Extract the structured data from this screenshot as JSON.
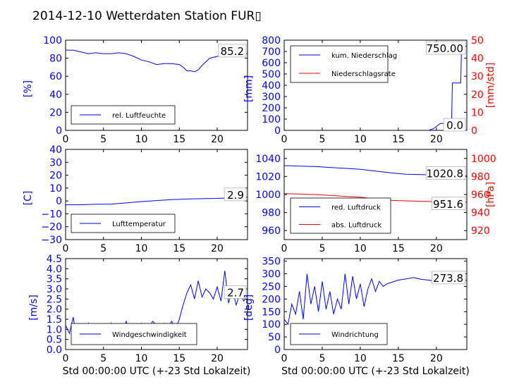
{
  "title": "2014-12-10 Wetterdaten Station FUR▯",
  "colors": {
    "primary": "#0000ff",
    "secondary": "#ff0000",
    "dim": "#7a7aff",
    "axis": "#000000"
  },
  "chart_data": [
    {
      "id": "humidity",
      "type": "line",
      "xlim": [
        0,
        24
      ],
      "ylim": [
        0,
        100
      ],
      "xticks": [
        0,
        5,
        10,
        15,
        20
      ],
      "yticks": [
        0,
        20,
        40,
        60,
        80,
        100
      ],
      "ylabel": "[%]",
      "value_box": "85.2",
      "legend": [
        {
          "label": "rel. Luftfeuchte",
          "color": "#0000ff"
        }
      ],
      "series": [
        {
          "name": "rel. Luftfeuchte",
          "axis": "left",
          "color": "#0000ff",
          "x": [
            0,
            1,
            2,
            3,
            4,
            5,
            6,
            7,
            8,
            9,
            10,
            11,
            12,
            13,
            14,
            15,
            15.5,
            16,
            16.5,
            17,
            17.5,
            18,
            18.5,
            19,
            20,
            21,
            22,
            23,
            24
          ],
          "y": [
            89,
            89,
            87,
            85,
            86,
            85,
            85,
            86,
            85,
            82,
            78,
            76,
            73,
            74,
            74,
            73,
            70,
            66,
            66,
            65,
            67,
            72,
            76,
            80,
            82,
            84,
            83,
            85,
            85.2
          ]
        }
      ]
    },
    {
      "id": "precipitation",
      "type": "line",
      "xlim": [
        0,
        24
      ],
      "ylim": [
        0,
        800
      ],
      "y2lim": [
        0,
        50
      ],
      "xticks": [
        0,
        5,
        10,
        15,
        20
      ],
      "yticks": [
        0,
        100,
        200,
        300,
        400,
        500,
        600,
        700,
        800
      ],
      "y2ticks": [
        0,
        10,
        20,
        30,
        40,
        50
      ],
      "ylabel": "[mm]",
      "y2label": "[mm/std]",
      "value_box": "750.00",
      "value_box2": "0.0",
      "legend": [
        {
          "label": "kum. Niederschlag",
          "color": "#0000ff"
        },
        {
          "label": "Niederschlagsrate",
          "color": "#ff0000"
        }
      ],
      "series": [
        {
          "name": "kum. Niederschlag",
          "axis": "left",
          "color": "#0000ff",
          "x": [
            0,
            19,
            19.6,
            20.5,
            21.8,
            22,
            22.1,
            23.2,
            23.3,
            24
          ],
          "y": [
            0,
            0,
            15,
            60,
            65,
            65,
            420,
            420,
            720,
            750
          ]
        },
        {
          "name": "Niederschlagsrate",
          "axis": "right",
          "color": "#ff0000",
          "x": [
            0,
            24
          ],
          "y": [
            0,
            0
          ]
        }
      ]
    },
    {
      "id": "temperature",
      "type": "line",
      "xlim": [
        0,
        24
      ],
      "ylim": [
        -30,
        40
      ],
      "xticks": [
        0,
        5,
        10,
        15,
        20
      ],
      "yticks": [
        -30,
        -20,
        -10,
        0,
        10,
        20,
        30,
        40
      ],
      "ylabel": "[C]",
      "value_box": "2.9",
      "legend": [
        {
          "label": "Lufttemperatur",
          "color": "#0000ff"
        }
      ],
      "series": [
        {
          "name": "Lufttemperatur",
          "axis": "left",
          "color": "#0000ff",
          "x": [
            0,
            2,
            4,
            6,
            7,
            8,
            9,
            10,
            12,
            14,
            16,
            18,
            20,
            22,
            24
          ],
          "y": [
            -3,
            -3,
            -2.5,
            -2.5,
            -2,
            -1.5,
            -1,
            -0.5,
            0.3,
            1,
            1.5,
            1.8,
            2,
            2.5,
            2.9
          ]
        }
      ]
    },
    {
      "id": "pressure",
      "type": "line",
      "xlim": [
        0,
        24
      ],
      "ylim": [
        950,
        1050
      ],
      "y2lim": [
        910,
        1010
      ],
      "xticks": [
        0,
        5,
        10,
        15,
        20
      ],
      "yticks": [
        960,
        980,
        1000,
        1020,
        1040
      ],
      "y2ticks": [
        920,
        940,
        960,
        980,
        1000
      ],
      "ylabel": "",
      "y2label": "[hPa]",
      "value_box": "1020.8",
      "value_box2": "951.6",
      "legend": [
        {
          "label": "red. Luftdruck",
          "color": "#0000ff"
        },
        {
          "label": "abs. Luftdruck",
          "color": "#ff0000"
        }
      ],
      "series": [
        {
          "name": "red. Luftdruck",
          "axis": "left",
          "color": "#0000ff",
          "x": [
            0,
            2,
            4,
            6,
            8,
            10,
            12,
            14,
            16,
            18,
            20,
            22,
            24
          ],
          "y": [
            1032,
            1031.5,
            1031,
            1030,
            1029,
            1028,
            1026,
            1024,
            1022.5,
            1022,
            1021.5,
            1021,
            1020.8
          ]
        },
        {
          "name": "abs. Luftdruck",
          "axis": "right",
          "color": "#ff0000",
          "x": [
            0,
            2,
            4,
            6,
            8,
            10,
            12,
            14,
            16,
            18,
            20,
            22,
            24
          ],
          "y": [
            961,
            960.5,
            960,
            959,
            958,
            957,
            955,
            953.5,
            953,
            952.5,
            952,
            951.8,
            951.6
          ]
        }
      ]
    },
    {
      "id": "wind_speed",
      "type": "line",
      "xlim": [
        0,
        24
      ],
      "ylim": [
        0,
        4.5
      ],
      "xticks": [
        0,
        5,
        10,
        15,
        20
      ],
      "yticks": [
        0,
        0.5,
        1.0,
        1.5,
        2.0,
        2.5,
        3.0,
        3.5,
        4.0,
        4.5
      ],
      "ytick_labels": [
        "0.0",
        "0.5",
        "1.0",
        "1.5",
        "2.0",
        "2.5",
        "3.0",
        "3.5",
        "4.0",
        "4.5"
      ],
      "xlabel": "Std 00:00:00 UTC (+-23 Std Lokalzeit)",
      "ylabel": "[m/s]",
      "value_box": "2.7",
      "legend": [
        {
          "label": "Windgeschwindigkeit",
          "color": "#0000ff"
        }
      ],
      "series": [
        {
          "name": "Windgeschwindigkeit",
          "axis": "left",
          "color": "#0000ff",
          "x": [
            0,
            0.5,
            1,
            1.5,
            2,
            2.5,
            3,
            3.5,
            4,
            4.5,
            5,
            5.5,
            6,
            6.5,
            7,
            7.5,
            8,
            8.5,
            9,
            9.5,
            10,
            10.5,
            11,
            11.5,
            12,
            12.5,
            13,
            13.5,
            14,
            14.5,
            15,
            15.5,
            16,
            16.5,
            17,
            17.5,
            18,
            18.5,
            19,
            19.5,
            20,
            20.5,
            21,
            21.5,
            22,
            22.5,
            23,
            23.5,
            24
          ],
          "y": [
            1.2,
            0.8,
            1.6,
            0.5,
            1.1,
            0.7,
            1.3,
            0.9,
            1.2,
            0.6,
            1.0,
            0.8,
            1.3,
            0.7,
            1.1,
            0.9,
            1.4,
            0.8,
            1.2,
            1.0,
            1.3,
            0.8,
            1.1,
            1.4,
            1.2,
            0.9,
            1.3,
            1.1,
            1.4,
            1.0,
            1.5,
            2.2,
            2.8,
            3.2,
            2.5,
            3.4,
            2.6,
            3.0,
            2.8,
            2.5,
            3.1,
            2.4,
            3.9,
            2.3,
            3.0,
            2.2,
            2.8,
            2.4,
            2.7
          ]
        }
      ]
    },
    {
      "id": "wind_direction",
      "type": "line",
      "xlim": [
        0,
        24
      ],
      "ylim": [
        0,
        360
      ],
      "xticks": [
        0,
        5,
        10,
        15,
        20
      ],
      "yticks": [
        0,
        50,
        100,
        150,
        200,
        250,
        300,
        350
      ],
      "xlabel": "Std 00:00:00 UTC (+-23 Std Lokalzeit)",
      "ylabel": "[deg]",
      "value_box": "273.8",
      "legend": [
        {
          "label": "Windrichtung",
          "color": "#0000ff"
        }
      ],
      "series": [
        {
          "name": "Windrichtung",
          "axis": "left",
          "color": "#0000ff",
          "x": [
            0,
            0.5,
            1,
            1.5,
            2,
            2.5,
            3,
            3.5,
            4,
            4.5,
            5,
            5.5,
            6,
            6.5,
            7,
            7.5,
            8,
            8.5,
            9,
            9.5,
            10,
            10.5,
            11,
            11.5,
            12,
            12.5,
            13,
            13.5,
            14,
            15,
            16,
            17,
            18,
            19,
            20,
            21,
            22,
            23,
            24
          ],
          "y": [
            120,
            100,
            180,
            140,
            230,
            120,
            300,
            180,
            250,
            150,
            270,
            160,
            230,
            140,
            200,
            160,
            300,
            180,
            290,
            200,
            260,
            170,
            240,
            280,
            230,
            270,
            250,
            260,
            265,
            275,
            280,
            285,
            278,
            275,
            270,
            275,
            272,
            276,
            273.8
          ]
        }
      ]
    }
  ]
}
